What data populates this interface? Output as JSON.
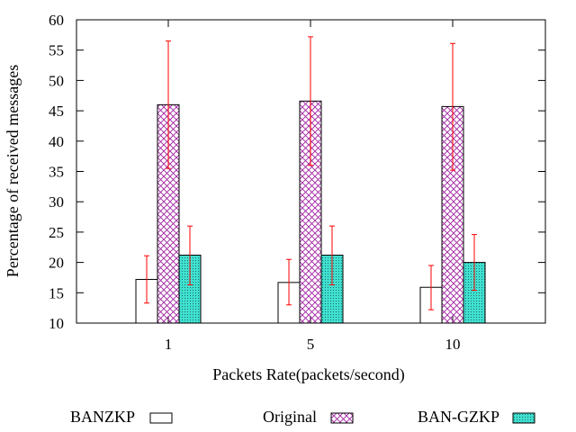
{
  "chart_data": {
    "type": "bar",
    "title": "",
    "xlabel": "Packets Rate(packets/second)",
    "ylabel": "Percentage of received messages",
    "ylim": [
      10,
      60
    ],
    "yticks": [
      "10",
      "15",
      "20",
      "25",
      "30",
      "35",
      "40",
      "45",
      "50",
      "55",
      "60"
    ],
    "categories": [
      "1",
      "5",
      "10"
    ],
    "legend_position": "bottom",
    "series": [
      {
        "name": "BANZKP",
        "values": [
          17.2,
          16.7,
          15.9
        ],
        "err_low": [
          13.3,
          13.0,
          12.2
        ],
        "err_high": [
          21.1,
          20.5,
          19.5
        ],
        "fill": "#ffffff",
        "pattern": "none"
      },
      {
        "name": "Original",
        "values": [
          46.0,
          46.6,
          45.7
        ],
        "err_low": [
          35.5,
          36.0,
          35.2
        ],
        "err_high": [
          56.5,
          57.2,
          56.1
        ],
        "fill": "#ffffff",
        "pattern": "crosshatch",
        "pattern_color": "#a020a0"
      },
      {
        "name": "BAN-GZKP",
        "values": [
          21.2,
          21.2,
          20.0
        ],
        "err_low": [
          16.3,
          16.3,
          15.4
        ],
        "err_high": [
          26.0,
          26.0,
          24.6
        ],
        "fill": "#40e0d0",
        "pattern": "dots",
        "pattern_color": "#000000"
      }
    ],
    "error_bar_color": "#ff0000"
  }
}
